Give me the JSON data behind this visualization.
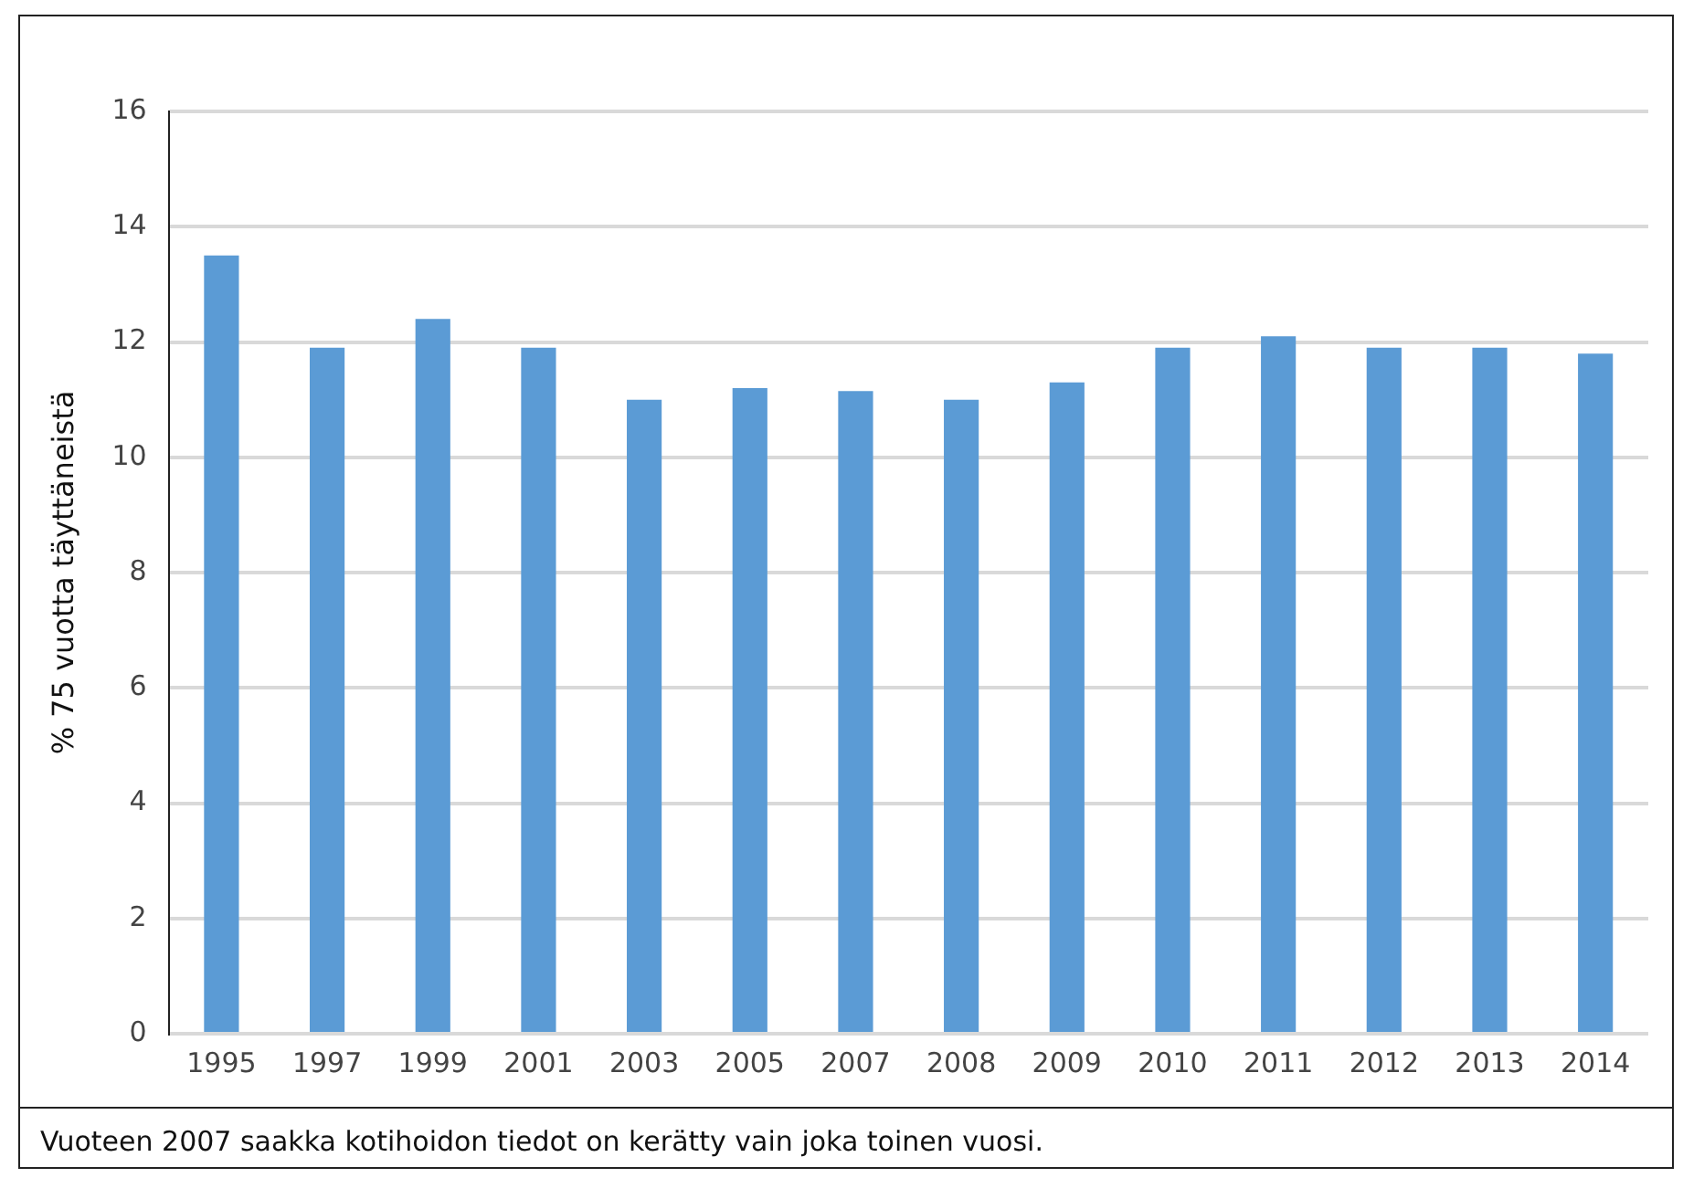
{
  "chart_data": {
    "type": "bar",
    "ylabel": "% 75 vuotta täyttäneistä",
    "categories": [
      "1995",
      "1997",
      "1999",
      "2001",
      "2003",
      "2005",
      "2007",
      "2008",
      "2009",
      "2010",
      "2011",
      "2012",
      "2013",
      "2014"
    ],
    "values": [
      13.5,
      11.9,
      12.4,
      11.9,
      11.0,
      11.2,
      11.15,
      11.0,
      11.3,
      11.9,
      12.1,
      11.9,
      11.9,
      11.8
    ],
    "color": "#5b9bd5",
    "ylim": [
      0,
      16
    ],
    "yticks": [
      0,
      2,
      4,
      6,
      8,
      10,
      12,
      14,
      16
    ],
    "grid": "y",
    "annotations": [
      "Vuoteen 2007 saakka kotihoidon tiedot on kerätty vain joka toinen vuosi."
    ]
  }
}
